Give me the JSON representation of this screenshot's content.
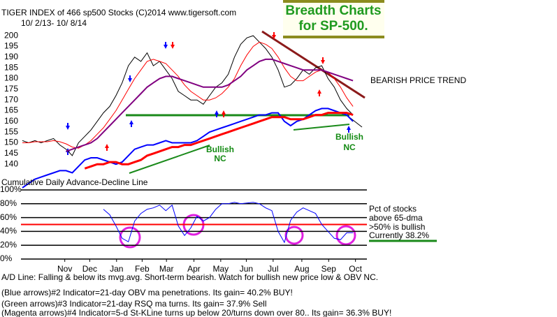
{
  "chart_data": [
    {
      "type": "line",
      "title": "TIGER INDEX of  466 sp500 Stocks  (C)2014  www.tigersoft.com",
      "subtitle": "10/ 2/13- 10/ 8/14",
      "headline": [
        "Breadth Charts",
        "for SP-500."
      ],
      "annotations": [
        "BEARISH PRICE TREND",
        "Bullish",
        "NC",
        "Bullish",
        "NC",
        "Cumulative Daily Advance-Decline Line"
      ],
      "xlim": [
        0,
        54
      ],
      "ylim": [
        128,
        202
      ],
      "yticks": [
        200,
        195,
        190,
        185,
        180,
        175,
        170,
        165,
        160,
        155,
        150,
        145,
        140
      ],
      "x": [
        0,
        1,
        2,
        3,
        4,
        5,
        6,
        7,
        8,
        9,
        10,
        11,
        12,
        13,
        14,
        15,
        16,
        17,
        18,
        19,
        20,
        21,
        22,
        23,
        24,
        25,
        26,
        27,
        28,
        29,
        30,
        31,
        32,
        33,
        34,
        35,
        36,
        37,
        38,
        39,
        40,
        41,
        42,
        43,
        44,
        45,
        46,
        47,
        48,
        49,
        50,
        51,
        52,
        53
      ],
      "series": [
        {
          "color": "#000000",
          "values": [
            151,
            150,
            151,
            150,
            151,
            152,
            149,
            147,
            144,
            150,
            153,
            156,
            160,
            164,
            167,
            172,
            178,
            186,
            190,
            188,
            192,
            186,
            188,
            184,
            180,
            174,
            172,
            170,
            170,
            168,
            172,
            176,
            178,
            182,
            190,
            196,
            199,
            200,
            197,
            194,
            190,
            184,
            176,
            177,
            180,
            184,
            182,
            185,
            186,
            180,
            176,
            170,
            166,
            163
          ]
        },
        {
          "color": "#ff0000",
          "values": [
            150,
            150,
            150.5,
            150.5,
            150.5,
            151,
            150.5,
            149.5,
            148,
            147.5,
            149,
            151,
            154,
            157,
            161,
            165,
            170,
            175,
            180,
            184,
            188,
            189,
            188,
            187,
            184,
            181,
            177,
            174,
            172,
            170,
            170,
            171,
            173,
            176,
            180,
            186,
            191,
            195,
            197,
            196,
            194,
            190,
            185,
            181,
            179,
            179,
            181,
            183,
            184,
            183,
            180,
            176,
            171,
            167
          ]
        },
        {
          "color": "#800080",
          "values": [
            null,
            null,
            null,
            null,
            null,
            null,
            null,
            146,
            147,
            148,
            149,
            150,
            152,
            155,
            158,
            161,
            164,
            167,
            170,
            173,
            176,
            178,
            180,
            181,
            181,
            180,
            179,
            178,
            177,
            176,
            176,
            176,
            176,
            177,
            179,
            181,
            184,
            186,
            188,
            189,
            189,
            188,
            187,
            186,
            185,
            184,
            184,
            184,
            184,
            183,
            182,
            181,
            180,
            179
          ]
        },
        {
          "color": "#0000ff",
          "values": [
            129,
            131,
            133,
            134,
            135,
            136,
            137,
            137,
            136,
            139,
            142,
            143,
            143,
            142,
            141,
            140,
            141,
            144,
            147,
            148,
            149,
            149,
            150,
            151,
            150,
            150,
            150,
            150,
            151,
            153,
            155,
            156,
            157,
            158,
            159,
            160,
            161,
            162,
            163,
            163,
            164,
            164,
            160,
            158,
            160,
            161,
            163,
            165,
            166,
            166,
            165,
            164,
            163,
            160
          ]
        },
        {
          "color": "#ff0000",
          "values": [
            null,
            null,
            null,
            null,
            null,
            null,
            null,
            null,
            null,
            null,
            138,
            139,
            140,
            140,
            141,
            141,
            140,
            140,
            141,
            142,
            144,
            145,
            146,
            147,
            148,
            148,
            149,
            149,
            150,
            151,
            152,
            153,
            154,
            155,
            156,
            157,
            158,
            159,
            160,
            161,
            162,
            162,
            162,
            161,
            161,
            161,
            162,
            163,
            163,
            164,
            164,
            164,
            164,
            163
          ]
        }
      ]
    },
    {
      "type": "line",
      "annotations": [
        "Pct of stocks",
        "above 65-dma",
        ">50% is bullish",
        "Currently  38.2%"
      ],
      "notes": [
        "A/D Line: Falling & below its mvg.avg. Short-term bearish. Watch for bullish new price low & OBV NC.",
        "(Blue arrows)#2 Indicator=21-day OBV ma penetrations. Its gain= 40.2% BUY!",
        "(Green arrows)#3 Indicator=21-day RSQ ma turns. Its gain= 37.9% Sell",
        "(Magenta arrows)#4 Indicator=5-d St-KLine turns up below 20/turns down over 80.. Its gain= 36.3% BUY!"
      ],
      "xlim": [
        0,
        54
      ],
      "ylim": [
        0,
        100
      ],
      "yticks": [
        {
          "value": 100,
          "label": "100%"
        },
        {
          "value": 80,
          "label": "80%"
        },
        {
          "value": 60,
          "label": "60%"
        },
        {
          "value": 40,
          "label": "40%"
        },
        {
          "value": 20,
          "label": "20%"
        },
        {
          "value": 0,
          "label": "0%"
        }
      ],
      "xticks": [
        {
          "value": 6.8,
          "label": "Nov"
        },
        {
          "value": 10.8,
          "label": "Dec"
        },
        {
          "value": 15.1,
          "label": "Jan"
        },
        {
          "value": 19.2,
          "label": "Feb"
        },
        {
          "value": 23.1,
          "label": "Mar"
        },
        {
          "value": 27.5,
          "label": "Apr"
        },
        {
          "value": 31.8,
          "label": "May"
        },
        {
          "value": 35.9,
          "label": "Jun"
        },
        {
          "value": 40.2,
          "label": "Jul"
        },
        {
          "value": 44.8,
          "label": "Aug"
        },
        {
          "value": 49.1,
          "label": "Sep"
        },
        {
          "value": 53.4,
          "label": "Oct"
        }
      ],
      "refline": {
        "value": 50,
        "color": "#ff0000"
      },
      "grid": true,
      "x": [
        13,
        14,
        15,
        16,
        17,
        18,
        19,
        20,
        21,
        22,
        23,
        24,
        25,
        26,
        27,
        28,
        29,
        30,
        31,
        32,
        33,
        34,
        35,
        36,
        37,
        38,
        39,
        40,
        41,
        42,
        43,
        44,
        45,
        46,
        47,
        48,
        49,
        50,
        51,
        52,
        53
      ],
      "series": [
        {
          "color": "#0000ff",
          "values": [
            72,
            64,
            48,
            30,
            25,
            55,
            66,
            72,
            74,
            78,
            70,
            78,
            48,
            34,
            45,
            62,
            55,
            60,
            72,
            80,
            80,
            82,
            80,
            81,
            82,
            80,
            74,
            70,
            40,
            24,
            56,
            68,
            74,
            70,
            66,
            50,
            40,
            30,
            28,
            38,
            38.2
          ]
        }
      ]
    }
  ]
}
